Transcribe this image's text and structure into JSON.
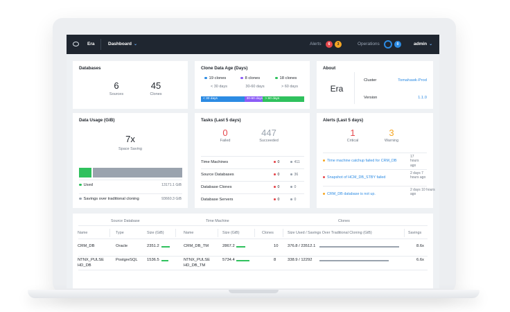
{
  "topbar": {
    "app_name": "Era",
    "menu_label": "Dashboard",
    "menu_chevron": "⌄",
    "alerts_label": "Alerts",
    "alerts_critical_count": "6",
    "alerts_warning_count": "3",
    "operations_label": "Operations",
    "operations_count": "0",
    "user_label": "admin",
    "user_chevron": "⌄"
  },
  "databases": {
    "title": "Databases",
    "sources_value": "6",
    "sources_label": "Sources",
    "clones_value": "45",
    "clones_label": "Clones"
  },
  "clone_age": {
    "title": "Clone Data Age (Days)",
    "groups": [
      {
        "count": "19 clones",
        "range": "< 30 days",
        "color": "#2c8be3"
      },
      {
        "count": "8 clones",
        "range": "30-60 days",
        "color": "#8b5cf6"
      },
      {
        "count": "18 clones",
        "range": "> 60 days",
        "color": "#2fc15d"
      }
    ],
    "bar_labels": [
      "< 30 days",
      "30-60 days",
      "> 60 days"
    ],
    "bar_fractions": [
      0.42,
      0.18,
      0.4
    ]
  },
  "about": {
    "title": "About",
    "product": "Era",
    "cluster_label": "Cluster",
    "cluster_value": "Tomahawk-Prod",
    "version_label": "Version",
    "version_value": "1.1.0"
  },
  "data_usage": {
    "title": "Data Usage (GiB)",
    "saving_value": "7x",
    "saving_label": "Space Saving",
    "used_fraction": 0.12,
    "rows": [
      {
        "label": "Used",
        "value": "13171.1 GiB",
        "color": "#2fc15d"
      },
      {
        "label": "Savings over traditional cloning",
        "value": "93660.3 GiB",
        "color": "#9aa3ae"
      }
    ]
  },
  "tasks": {
    "title": "Tasks (Last 5 days)",
    "failed_value": "0",
    "failed_label": "Failed",
    "succeeded_value": "447",
    "succeeded_label": "Succeeded",
    "rows": [
      {
        "label": "Time Machines",
        "failed": "0",
        "succeeded": "411"
      },
      {
        "label": "Source Databases",
        "failed": "0",
        "succeeded": "36"
      },
      {
        "label": "Database Clones",
        "failed": "0",
        "succeeded": "0"
      },
      {
        "label": "Database Servers",
        "failed": "0",
        "succeeded": "0"
      }
    ]
  },
  "alerts": {
    "title": "Alerts (Last 5 days)",
    "critical_value": "1",
    "critical_label": "Critical",
    "warning_value": "3",
    "warning_label": "Warning",
    "items": [
      {
        "text": "Time machine catchup failed for CRM_DB",
        "time_lines": [
          "17",
          "hours",
          "ago"
        ],
        "color": "#f5a623"
      },
      {
        "text": "Snapshot of HCM_DB_STBY failed",
        "time_lines": [
          "2 days 7",
          "hours ago"
        ],
        "color": "#e5484d"
      },
      {
        "text": "CRM_DB database is not up.",
        "time_lines": [
          "2 days 10 hours",
          "ago"
        ],
        "color": "#f5a623"
      }
    ]
  },
  "table": {
    "groups": [
      "Source Database",
      "Time Machine",
      "Clones"
    ],
    "headers": [
      "Name",
      "Type",
      "Size (GiB)",
      "Name",
      "Size (GiB)",
      "Clones",
      "Size Used / Savings Over Traditional Cloning (GiB)",
      "Savings"
    ],
    "rows": [
      {
        "name": "CRM_DB",
        "name2": "",
        "type": "Oracle",
        "size": "2351.2",
        "size_fraction": 0.55,
        "tm_name": "CRM_DB_TM",
        "tm_name2": "",
        "tm_size": "2867.2",
        "tm_size_fraction": 0.6,
        "clones": "10",
        "used_savings": "376.8 / 23512.1",
        "savings": "8.6x"
      },
      {
        "name": "NTNX_PULSE",
        "name2": "HD_DB",
        "type": "PostgreSQL",
        "size": "1536.5",
        "size_fraction": 0.45,
        "tm_name": "NTNX_PULSE",
        "tm_name2": "HD_DB_TM",
        "tm_size": "5734.4",
        "tm_size_fraction": 0.85,
        "clones": "8",
        "used_savings": "338.9 / 12292",
        "savings": "6.6x"
      }
    ]
  }
}
